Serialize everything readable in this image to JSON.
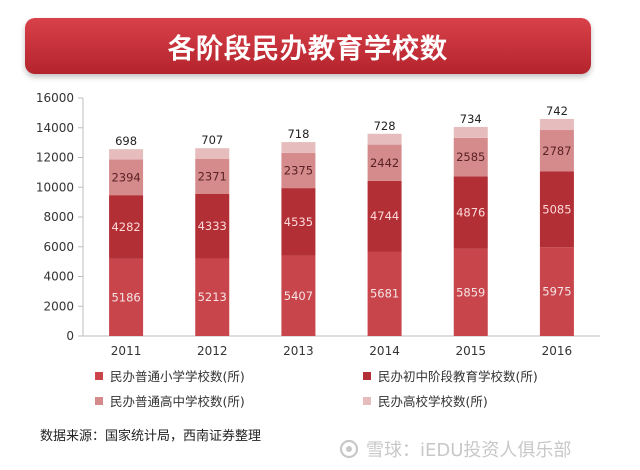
{
  "header": {
    "title": "各阶段民办教育学校数"
  },
  "chart_data": {
    "type": "bar",
    "stacked": true,
    "categories": [
      "2011",
      "2012",
      "2013",
      "2014",
      "2015",
      "2016"
    ],
    "series": [
      {
        "name": "民办普通小学学校数(所)",
        "color": "#c8454c",
        "values": [
          5186,
          5213,
          5407,
          5681,
          5859,
          5975
        ]
      },
      {
        "name": "民办初中阶段教育学校数(所)",
        "color": "#b12f35",
        "values": [
          4282,
          4333,
          4535,
          4744,
          4876,
          5085
        ]
      },
      {
        "name": "民办普通高中学校数(所)",
        "color": "#d58a8c",
        "values": [
          2394,
          2371,
          2375,
          2442,
          2585,
          2787
        ]
      },
      {
        "name": "民办高校学校数(所)",
        "color": "#e6bcbc",
        "values": [
          698,
          707,
          718,
          728,
          734,
          742
        ]
      }
    ],
    "ylim": [
      0,
      16000
    ],
    "yticks": [
      "0",
      "2000",
      "4000",
      "6000",
      "8000",
      "10000",
      "12000",
      "14000",
      "16000"
    ],
    "grid": false,
    "legend_position": "bottom"
  },
  "footer": {
    "source": "数据来源：国家统计局，西南证券整理",
    "watermark": "雪球：iEDU投资人俱乐部"
  }
}
